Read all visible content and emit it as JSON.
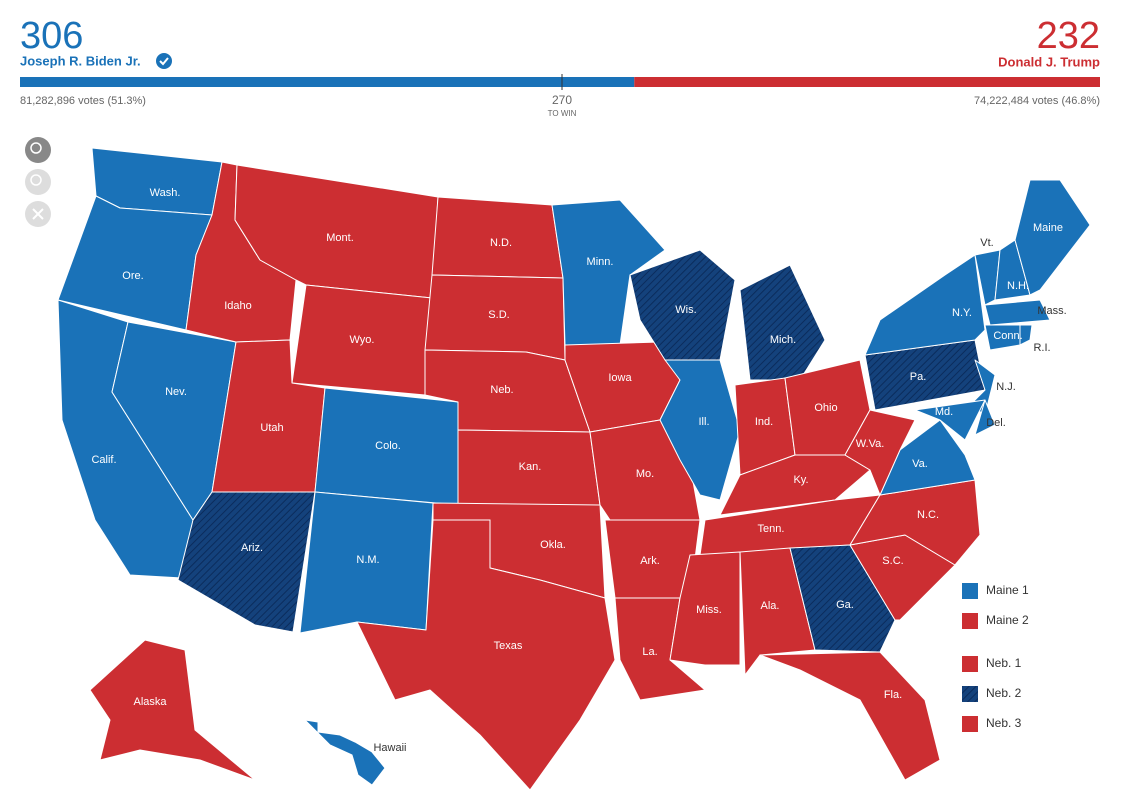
{
  "header": {
    "dem": {
      "electoral_votes": 306,
      "name": "Joseph R. Biden Jr.",
      "votes": "81,282,896 votes (51.3%)"
    },
    "rep": {
      "electoral_votes": 232,
      "name": "Donald J. Trump",
      "votes": "74,222,484 votes (46.8%)"
    },
    "to_win": {
      "value": 270,
      "label": "TO WIN"
    }
  },
  "map": {
    "colors": {
      "dem": "#1a72b8",
      "rep": "#cc2e32",
      "flip": "#14427c"
    },
    "states": [
      {
        "label": "Wash.",
        "winner": "dem"
      },
      {
        "label": "Ore.",
        "winner": "dem"
      },
      {
        "label": "Calif.",
        "winner": "dem"
      },
      {
        "label": "Nev.",
        "winner": "dem"
      },
      {
        "label": "Idaho",
        "winner": "rep"
      },
      {
        "label": "Mont.",
        "winner": "rep"
      },
      {
        "label": "Wyo.",
        "winner": "rep"
      },
      {
        "label": "Utah",
        "winner": "rep"
      },
      {
        "label": "Colo.",
        "winner": "dem"
      },
      {
        "label": "Ariz.",
        "winner": "dem",
        "flipped": true
      },
      {
        "label": "N.M.",
        "winner": "dem"
      },
      {
        "label": "N.D.",
        "winner": "rep"
      },
      {
        "label": "S.D.",
        "winner": "rep"
      },
      {
        "label": "Neb.",
        "winner": "rep"
      },
      {
        "label": "Kan.",
        "winner": "rep"
      },
      {
        "label": "Okla.",
        "winner": "rep"
      },
      {
        "label": "Texas",
        "winner": "rep"
      },
      {
        "label": "Minn.",
        "winner": "dem"
      },
      {
        "label": "Iowa",
        "winner": "rep"
      },
      {
        "label": "Mo.",
        "winner": "rep"
      },
      {
        "label": "Ark.",
        "winner": "rep"
      },
      {
        "label": "La.",
        "winner": "rep"
      },
      {
        "label": "Wis.",
        "winner": "dem",
        "flipped": true
      },
      {
        "label": "Ill.",
        "winner": "dem"
      },
      {
        "label": "Mich.",
        "winner": "dem",
        "flipped": true
      },
      {
        "label": "Ind.",
        "winner": "rep"
      },
      {
        "label": "Ohio",
        "winner": "rep"
      },
      {
        "label": "Ky.",
        "winner": "rep"
      },
      {
        "label": "Tenn.",
        "winner": "rep"
      },
      {
        "label": "Miss.",
        "winner": "rep"
      },
      {
        "label": "Ala.",
        "winner": "rep"
      },
      {
        "label": "Ga.",
        "winner": "dem",
        "flipped": true
      },
      {
        "label": "Fla.",
        "winner": "rep"
      },
      {
        "label": "S.C.",
        "winner": "rep"
      },
      {
        "label": "N.C.",
        "winner": "rep"
      },
      {
        "label": "Va.",
        "winner": "dem"
      },
      {
        "label": "W.Va.",
        "winner": "rep"
      },
      {
        "label": "Pa.",
        "winner": "dem",
        "flipped": true
      },
      {
        "label": "N.Y.",
        "winner": "dem"
      },
      {
        "label": "N.J.",
        "winner": "dem"
      },
      {
        "label": "Md.",
        "winner": "dem"
      },
      {
        "label": "Del.",
        "winner": "dem"
      },
      {
        "label": "Vt.",
        "winner": "dem"
      },
      {
        "label": "N.H.",
        "winner": "dem"
      },
      {
        "label": "Maine",
        "winner": "dem"
      },
      {
        "label": "Mass.",
        "winner": "dem"
      },
      {
        "label": "Conn.",
        "winner": "dem"
      },
      {
        "label": "R.I.",
        "winner": "dem"
      },
      {
        "label": "Alaska",
        "winner": "rep"
      },
      {
        "label": "Hawaii",
        "winner": "dem"
      }
    ],
    "legend": [
      {
        "label": "Maine 1",
        "winner": "dem"
      },
      {
        "label": "Maine 2",
        "winner": "rep"
      },
      {
        "label": "Neb. 1",
        "winner": "rep"
      },
      {
        "label": "Neb. 2",
        "winner": "dem",
        "flipped": true
      },
      {
        "label": "Neb. 3",
        "winner": "rep"
      }
    ]
  }
}
